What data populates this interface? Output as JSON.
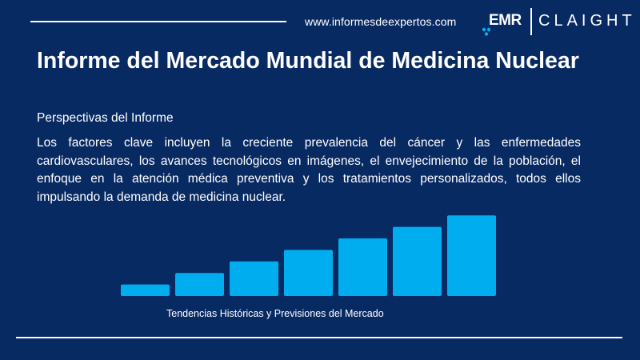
{
  "header": {
    "website": "www.informesdeexpertos.com",
    "logo": {
      "primary": "EMR",
      "secondary": "CLAIGHT"
    }
  },
  "report": {
    "title": "Informe del Mercado Mundial de  Medicina Nuclear",
    "subtitle": "Perspectivas del Informe",
    "description": "Los factores clave incluyen la creciente prevalencia del cáncer y las enfermedades cardiovasculares, los avances tecnológicos en imágenes, el envejecimiento de la población, el enfoque en la atención médica preventiva y los tratamientos personalizados, todos ellos impulsando la demanda de medicina nuclear."
  },
  "chart_data": {
    "type": "bar",
    "categories": [
      "",
      "",
      "",
      "",
      "",
      "",
      ""
    ],
    "values": [
      1,
      2,
      3,
      4,
      5,
      6,
      7
    ],
    "caption": "Tendencias Históricas y Previsiones del Mercado",
    "bar_color": "#00aeef"
  },
  "colors": {
    "background": "#082a63",
    "accent": "#00aeef",
    "text": "#ffffff"
  }
}
